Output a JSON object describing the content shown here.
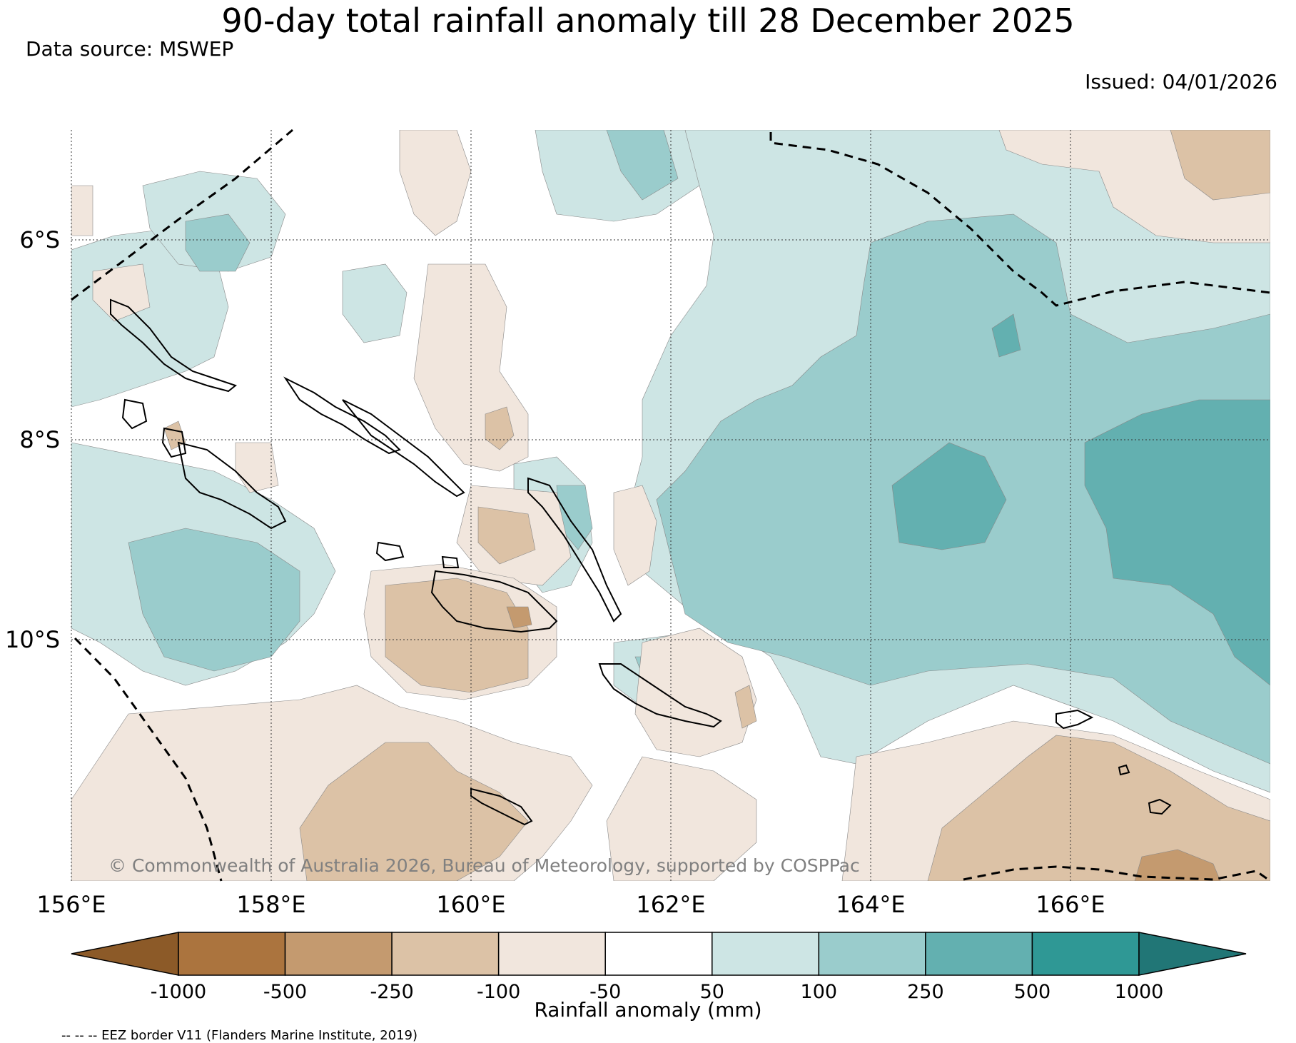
{
  "title": "90-day total rainfall anomaly till 28 December 2025",
  "data_source": "Data source: MSWEP",
  "issued": "Issued: 04/01/2026",
  "copyright": "© Commonwealth of Australia 2026, Bureau of Meteorology, supported by COSPPac",
  "map": {
    "lon_range": [
      156,
      168
    ],
    "lat_range": [
      -4.9,
      -12.4
    ],
    "lon_ticks": [
      {
        "value": 156,
        "label": "156°E"
      },
      {
        "value": 158,
        "label": "158°E"
      },
      {
        "value": 160,
        "label": "160°E"
      },
      {
        "value": 162,
        "label": "162°E"
      },
      {
        "value": 164,
        "label": "164°E"
      },
      {
        "value": 166,
        "label": "166°E"
      }
    ],
    "lat_ticks": [
      {
        "value": -6,
        "label": "6°S"
      },
      {
        "value": -8,
        "label": "8°S"
      },
      {
        "value": -10,
        "label": "10°S"
      }
    ]
  },
  "colorbar": {
    "label": "Rainfall anomaly (mm)",
    "ticks": [
      "-1000",
      "-500",
      "-250",
      "-100",
      "-50",
      "50",
      "100",
      "250",
      "500",
      "1000"
    ],
    "under_color": "#8c5a28",
    "colors": [
      "#ab743e",
      "#c49a6f",
      "#dcc2a6",
      "#f1e6dd",
      "#ffffff",
      "#cde5e4",
      "#9acccc",
      "#63b0b0",
      "#2f9895"
    ],
    "over_color": "#217676"
  },
  "eez_note": "-- -- -- EEZ border V11 (Flanders Marine Institute, 2019)"
}
